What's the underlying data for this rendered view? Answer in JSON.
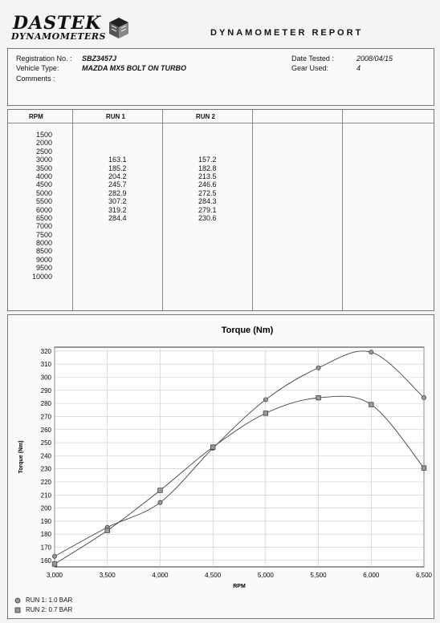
{
  "header": {
    "logo_top": "DASTEK",
    "logo_bottom": "DYNAMOMETERS",
    "report_title": "DYNAMOMETER REPORT"
  },
  "info": {
    "registration_label": "Registration No. :",
    "registration_value": "SBZ3457J",
    "vehicle_label": "Vehicle Type:",
    "vehicle_value": "MAZDA MX5 BOLT ON TURBO",
    "comments_label": "Comments :",
    "date_label": "Date Tested :",
    "date_value": "2008/04/15",
    "gear_label": "Gear Used:",
    "gear_value": "4"
  },
  "table": {
    "headers": [
      "RPM",
      "RUN 1",
      "RUN 2"
    ],
    "rpm": [
      "1500",
      "2000",
      "2500",
      "3000",
      "3500",
      "4000",
      "4500",
      "5000",
      "5500",
      "6000",
      "6500",
      "7000",
      "7500",
      "8000",
      "8500",
      "9000",
      "9500",
      "10000"
    ],
    "run1": [
      "",
      "",
      "",
      "163.1",
      "185.2",
      "204.2",
      "245.7",
      "282.9",
      "307.2",
      "319.2",
      "284.4",
      "",
      "",
      "",
      "",
      "",
      "",
      ""
    ],
    "run2": [
      "",
      "",
      "",
      "157.2",
      "182.8",
      "213.5",
      "246.6",
      "272.5",
      "284.3",
      "279.1",
      "230.6",
      "",
      "",
      "",
      "",
      "",
      "",
      ""
    ]
  },
  "chart_data": {
    "type": "line",
    "title": "Torque (Nm)",
    "xlabel": "RPM",
    "ylabel": "Torque (Nm)",
    "x": [
      3000,
      3500,
      4000,
      4500,
      5000,
      5500,
      6000,
      6500
    ],
    "x_tick_labels": [
      "3,000",
      "3,500",
      "4,000",
      "4,500",
      "5,000",
      "5,500",
      "6,000",
      "6,500"
    ],
    "y_ticks": [
      160,
      170,
      180,
      190,
      200,
      210,
      220,
      230,
      240,
      250,
      260,
      270,
      280,
      290,
      300,
      310,
      320
    ],
    "xlim": [
      3000,
      6500
    ],
    "ylim": [
      155,
      323
    ],
    "grid": true,
    "legend_placement": "bottom-left",
    "series": [
      {
        "name": "RUN 1: 1.0 BAR",
        "marker": "circle",
        "values": [
          163.1,
          185.2,
          204.2,
          245.7,
          282.9,
          307.2,
          319.2,
          284.4
        ]
      },
      {
        "name": "RUN 2: 0.7 BAR",
        "marker": "square",
        "values": [
          157.2,
          182.8,
          213.5,
          246.6,
          272.5,
          284.3,
          279.1,
          230.6
        ]
      }
    ]
  }
}
